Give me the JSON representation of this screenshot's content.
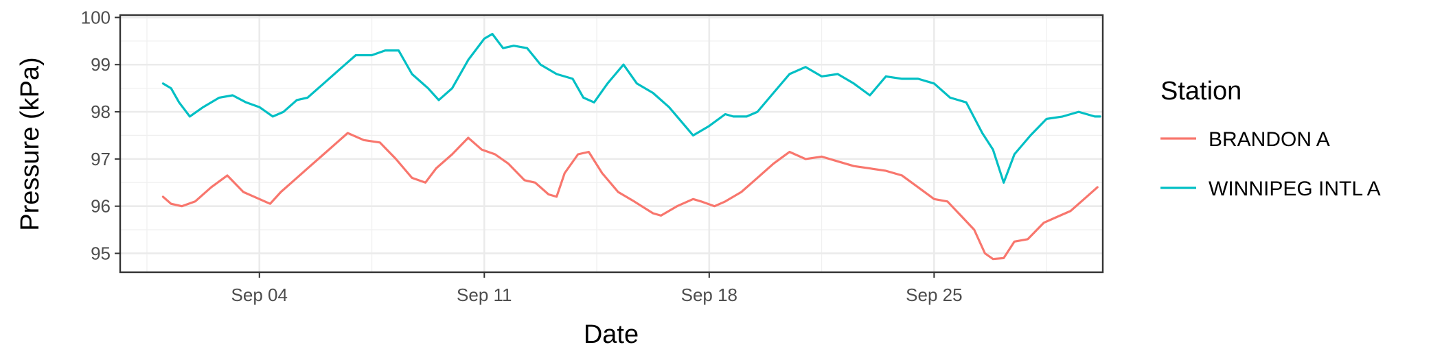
{
  "chart_data": {
    "type": "line",
    "xlabel": "Date",
    "ylabel": "Pressure (kPa)",
    "x_tick_labels": [
      "Sep 04",
      "Sep 11",
      "Sep 18",
      "Sep 25"
    ],
    "x_tick_dates": [
      "2021-09-04",
      "2021-09-11",
      "2021-09-18",
      "2021-09-25"
    ],
    "x_range": [
      "2021-08-30T16:00",
      "2021-09-30T06:00"
    ],
    "y_ticks": [
      95,
      96,
      97,
      98,
      99,
      100
    ],
    "ylim": [
      94.6,
      100.05
    ],
    "grid": true,
    "legend": {
      "title": "Station",
      "position": "right"
    },
    "series": [
      {
        "name": "BRANDON A",
        "color": "#F8766D",
        "points": [
          [
            "2021-09-01T00:00",
            96.2
          ],
          [
            "2021-09-01T06:00",
            96.05
          ],
          [
            "2021-09-01T14:00",
            96.0
          ],
          [
            "2021-09-02T00:00",
            96.1
          ],
          [
            "2021-09-02T12:00",
            96.4
          ],
          [
            "2021-09-03T00:00",
            96.65
          ],
          [
            "2021-09-03T12:00",
            96.3
          ],
          [
            "2021-09-04T00:00",
            96.15
          ],
          [
            "2021-09-04T08:00",
            96.05
          ],
          [
            "2021-09-04T16:00",
            96.3
          ],
          [
            "2021-09-05T00:00",
            96.5
          ],
          [
            "2021-09-05T12:00",
            96.8
          ],
          [
            "2021-09-06T00:00",
            97.1
          ],
          [
            "2021-09-06T12:00",
            97.4
          ],
          [
            "2021-09-06T18:00",
            97.55
          ],
          [
            "2021-09-07T06:00",
            97.4
          ],
          [
            "2021-09-07T18:00",
            97.35
          ],
          [
            "2021-09-08T06:00",
            97.0
          ],
          [
            "2021-09-08T18:00",
            96.6
          ],
          [
            "2021-09-09T04:00",
            96.5
          ],
          [
            "2021-09-09T12:00",
            96.8
          ],
          [
            "2021-09-10T00:00",
            97.1
          ],
          [
            "2021-09-10T12:00",
            97.45
          ],
          [
            "2021-09-10T22:00",
            97.2
          ],
          [
            "2021-09-11T08:00",
            97.1
          ],
          [
            "2021-09-11T18:00",
            96.9
          ],
          [
            "2021-09-12T06:00",
            96.55
          ],
          [
            "2021-09-12T14:00",
            96.5
          ],
          [
            "2021-09-13T00:00",
            96.25
          ],
          [
            "2021-09-13T06:00",
            96.2
          ],
          [
            "2021-09-13T12:00",
            96.7
          ],
          [
            "2021-09-13T22:00",
            97.1
          ],
          [
            "2021-09-14T06:00",
            97.15
          ],
          [
            "2021-09-14T16:00",
            96.7
          ],
          [
            "2021-09-15T04:00",
            96.3
          ],
          [
            "2021-09-15T16:00",
            96.1
          ],
          [
            "2021-09-16T06:00",
            95.85
          ],
          [
            "2021-09-16T12:00",
            95.8
          ],
          [
            "2021-09-17T00:00",
            96.0
          ],
          [
            "2021-09-17T12:00",
            96.15
          ],
          [
            "2021-09-17T18:00",
            96.1
          ],
          [
            "2021-09-18T04:00",
            96.0
          ],
          [
            "2021-09-18T12:00",
            96.1
          ],
          [
            "2021-09-19T00:00",
            96.3
          ],
          [
            "2021-09-19T12:00",
            96.6
          ],
          [
            "2021-09-20T00:00",
            96.9
          ],
          [
            "2021-09-20T12:00",
            97.15
          ],
          [
            "2021-09-21T00:00",
            97.0
          ],
          [
            "2021-09-21T12:00",
            97.05
          ],
          [
            "2021-09-22T00:00",
            96.95
          ],
          [
            "2021-09-22T12:00",
            96.85
          ],
          [
            "2021-09-23T00:00",
            96.8
          ],
          [
            "2021-09-23T12:00",
            96.75
          ],
          [
            "2021-09-24T00:00",
            96.65
          ],
          [
            "2021-09-24T12:00",
            96.4
          ],
          [
            "2021-09-25T00:00",
            96.15
          ],
          [
            "2021-09-25T10:00",
            96.1
          ],
          [
            "2021-09-25T20:00",
            95.8
          ],
          [
            "2021-09-26T06:00",
            95.5
          ],
          [
            "2021-09-26T14:00",
            95.0
          ],
          [
            "2021-09-26T20:00",
            94.88
          ],
          [
            "2021-09-27T04:00",
            94.9
          ],
          [
            "2021-09-27T12:00",
            95.25
          ],
          [
            "2021-09-27T22:00",
            95.3
          ],
          [
            "2021-09-28T10:00",
            95.65
          ],
          [
            "2021-09-28T18:00",
            95.75
          ],
          [
            "2021-09-29T06:00",
            95.9
          ],
          [
            "2021-09-29T18:00",
            96.2
          ],
          [
            "2021-09-30T02:00",
            96.4
          ]
        ]
      },
      {
        "name": "WINNIPEG INTL A",
        "color": "#00BFC4",
        "points": [
          [
            "2021-09-01T00:00",
            98.6
          ],
          [
            "2021-09-01T06:00",
            98.5
          ],
          [
            "2021-09-01T12:00",
            98.2
          ],
          [
            "2021-09-01T20:00",
            97.9
          ],
          [
            "2021-09-02T06:00",
            98.1
          ],
          [
            "2021-09-02T18:00",
            98.3
          ],
          [
            "2021-09-03T04:00",
            98.35
          ],
          [
            "2021-09-03T14:00",
            98.2
          ],
          [
            "2021-09-04T00:00",
            98.1
          ],
          [
            "2021-09-04T10:00",
            97.9
          ],
          [
            "2021-09-04T18:00",
            98.0
          ],
          [
            "2021-09-05T04:00",
            98.25
          ],
          [
            "2021-09-05T12:00",
            98.3
          ],
          [
            "2021-09-06T00:00",
            98.6
          ],
          [
            "2021-09-06T12:00",
            98.9
          ],
          [
            "2021-09-07T00:00",
            99.2
          ],
          [
            "2021-09-07T12:00",
            99.2
          ],
          [
            "2021-09-07T22:00",
            99.3
          ],
          [
            "2021-09-08T08:00",
            99.3
          ],
          [
            "2021-09-08T18:00",
            98.8
          ],
          [
            "2021-09-09T06:00",
            98.5
          ],
          [
            "2021-09-09T14:00",
            98.25
          ],
          [
            "2021-09-10T00:00",
            98.5
          ],
          [
            "2021-09-10T12:00",
            99.1
          ],
          [
            "2021-09-11T00:00",
            99.55
          ],
          [
            "2021-09-11T06:00",
            99.65
          ],
          [
            "2021-09-11T14:00",
            99.35
          ],
          [
            "2021-09-11T22:00",
            99.4
          ],
          [
            "2021-09-12T08:00",
            99.35
          ],
          [
            "2021-09-12T18:00",
            99.0
          ],
          [
            "2021-09-13T06:00",
            98.8
          ],
          [
            "2021-09-13T18:00",
            98.7
          ],
          [
            "2021-09-14T02:00",
            98.3
          ],
          [
            "2021-09-14T10:00",
            98.2
          ],
          [
            "2021-09-14T20:00",
            98.6
          ],
          [
            "2021-09-15T08:00",
            99.0
          ],
          [
            "2021-09-15T18:00",
            98.6
          ],
          [
            "2021-09-16T06:00",
            98.4
          ],
          [
            "2021-09-16T18:00",
            98.1
          ],
          [
            "2021-09-17T06:00",
            97.7
          ],
          [
            "2021-09-17T12:00",
            97.5
          ],
          [
            "2021-09-18T00:00",
            97.7
          ],
          [
            "2021-09-18T12:00",
            97.95
          ],
          [
            "2021-09-18T18:00",
            97.9
          ],
          [
            "2021-09-19T04:00",
            97.9
          ],
          [
            "2021-09-19T12:00",
            98.0
          ],
          [
            "2021-09-20T00:00",
            98.4
          ],
          [
            "2021-09-20T12:00",
            98.8
          ],
          [
            "2021-09-21T00:00",
            98.95
          ],
          [
            "2021-09-21T12:00",
            98.75
          ],
          [
            "2021-09-22T00:00",
            98.8
          ],
          [
            "2021-09-22T12:00",
            98.6
          ],
          [
            "2021-09-23T00:00",
            98.35
          ],
          [
            "2021-09-23T12:00",
            98.75
          ],
          [
            "2021-09-24T00:00",
            98.7
          ],
          [
            "2021-09-24T12:00",
            98.7
          ],
          [
            "2021-09-25T00:00",
            98.6
          ],
          [
            "2021-09-25T12:00",
            98.3
          ],
          [
            "2021-09-26T00:00",
            98.2
          ],
          [
            "2021-09-26T12:00",
            97.55
          ],
          [
            "2021-09-26T20:00",
            97.2
          ],
          [
            "2021-09-27T04:00",
            96.5
          ],
          [
            "2021-09-27T12:00",
            97.1
          ],
          [
            "2021-09-28T00:00",
            97.5
          ],
          [
            "2021-09-28T12:00",
            97.85
          ],
          [
            "2021-09-29T00:00",
            97.9
          ],
          [
            "2021-09-29T12:00",
            98.0
          ],
          [
            "2021-09-30T00:00",
            97.9
          ],
          [
            "2021-09-30T04:00",
            97.9
          ]
        ]
      }
    ]
  }
}
